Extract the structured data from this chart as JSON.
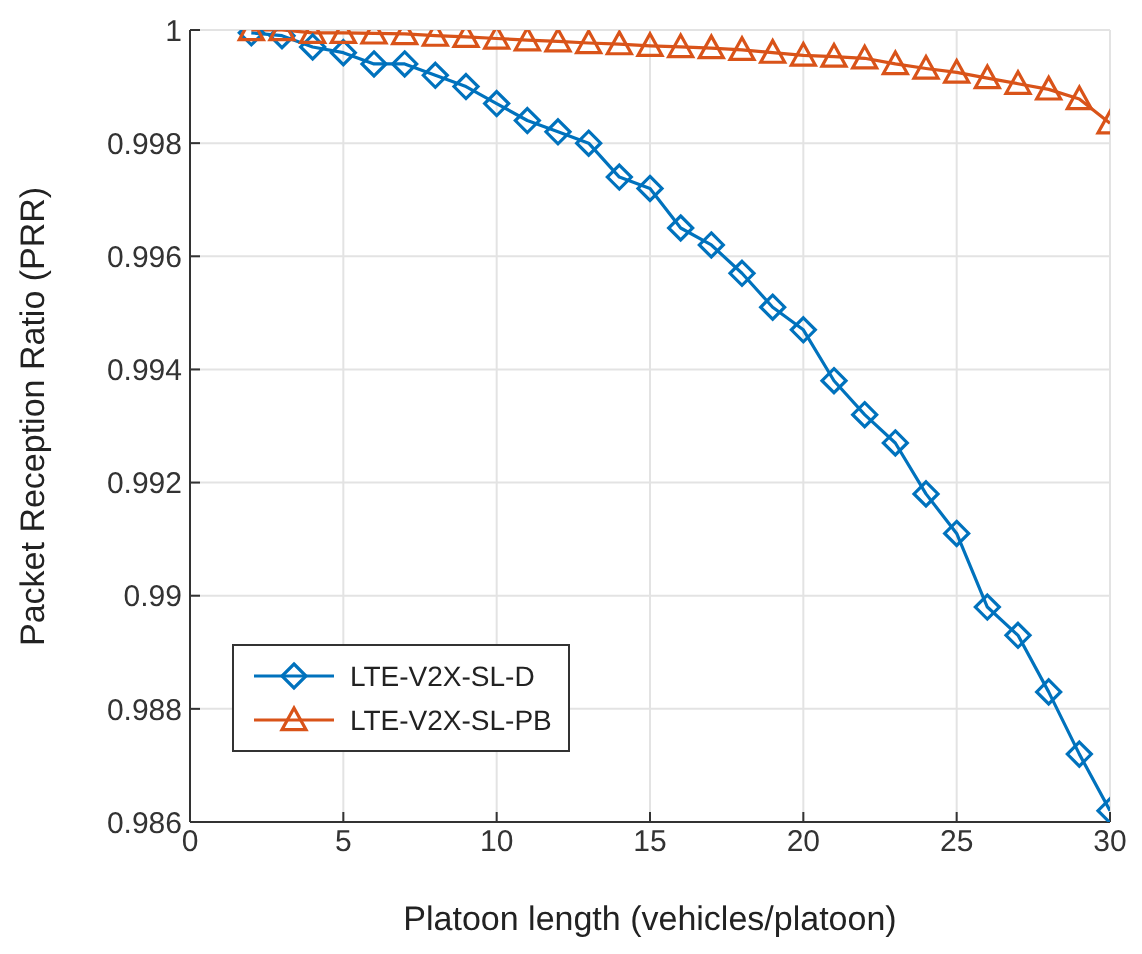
{
  "chart_data": {
    "type": "line",
    "xlabel": "Platoon length (vehicles/platoon)",
    "ylabel": "Packet Reception Ratio (PRR)",
    "x": [
      2,
      3,
      4,
      5,
      6,
      7,
      8,
      9,
      10,
      11,
      12,
      13,
      14,
      15,
      16,
      17,
      18,
      19,
      20,
      21,
      22,
      23,
      24,
      25,
      26,
      27,
      28,
      29,
      30
    ],
    "series": [
      {
        "name": "LTE-V2X-SL-D",
        "color": "#0072bd",
        "marker": "diamond",
        "values": [
          0.99995,
          0.9999,
          0.9997,
          0.9996,
          0.9994,
          0.9994,
          0.9992,
          0.999,
          0.9987,
          0.9984,
          0.9982,
          0.998,
          0.9974,
          0.9972,
          0.9965,
          0.9962,
          0.9957,
          0.9951,
          0.9947,
          0.9938,
          0.9932,
          0.9927,
          0.9918,
          0.9911,
          0.9898,
          0.9893,
          0.9883,
          0.9872,
          0.9862
        ]
      },
      {
        "name": "LTE-V2X-SL-PB",
        "color": "#d95319",
        "marker": "triangle",
        "values": [
          1,
          1,
          0.99995,
          0.99995,
          0.99994,
          0.99993,
          0.9999,
          0.99988,
          0.99985,
          0.99982,
          0.9998,
          0.99977,
          0.99975,
          0.99972,
          0.9997,
          0.99968,
          0.99965,
          0.9996,
          0.99955,
          0.99953,
          0.9995,
          0.9994,
          0.99932,
          0.99925,
          0.99915,
          0.99905,
          0.99895,
          0.99878,
          0.99835
        ]
      }
    ],
    "xlim": [
      0,
      30
    ],
    "xticks": [
      0,
      5,
      10,
      15,
      20,
      25,
      30
    ],
    "ylim": [
      0.986,
      1
    ],
    "yticks": [
      0.986,
      0.988,
      0.99,
      0.992,
      0.994,
      0.996,
      0.998,
      1
    ],
    "grid": true,
    "legend": "bottom left",
    "line_style": "solid"
  }
}
